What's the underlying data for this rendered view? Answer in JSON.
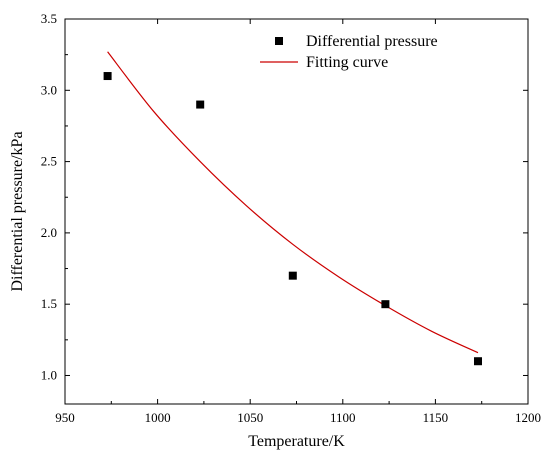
{
  "chart_data": {
    "type": "scatter",
    "title": "",
    "xlabel": "Temperature/K",
    "ylabel": "Differential pressure/kPa",
    "xlim": [
      950,
      1200
    ],
    "ylim": [
      0.8,
      3.5
    ],
    "xticks": [
      950,
      1000,
      1050,
      1100,
      1150,
      1200
    ],
    "yticks": [
      1.0,
      1.5,
      2.0,
      2.5,
      3.0,
      3.5
    ],
    "ytick_labels": [
      "1.0",
      "1.5",
      "2.0",
      "2.5",
      "3.0",
      "3.5"
    ],
    "grid": false,
    "legend_position": "top-right",
    "series": [
      {
        "name": "Differential pressure",
        "kind": "scatter",
        "marker": "square",
        "color": "#000000",
        "x": [
          973,
          1023,
          1073,
          1123,
          1173
        ],
        "y": [
          3.1,
          2.9,
          1.7,
          1.5,
          1.1
        ]
      },
      {
        "name": "Fitting curve",
        "kind": "line",
        "color": "#cc0000",
        "x": [
          973,
          998,
          1023,
          1048,
          1073,
          1098,
          1123,
          1148,
          1173
        ],
        "y": [
          3.27,
          2.85,
          2.5,
          2.19,
          1.92,
          1.69,
          1.49,
          1.31,
          1.16
        ]
      }
    ]
  }
}
